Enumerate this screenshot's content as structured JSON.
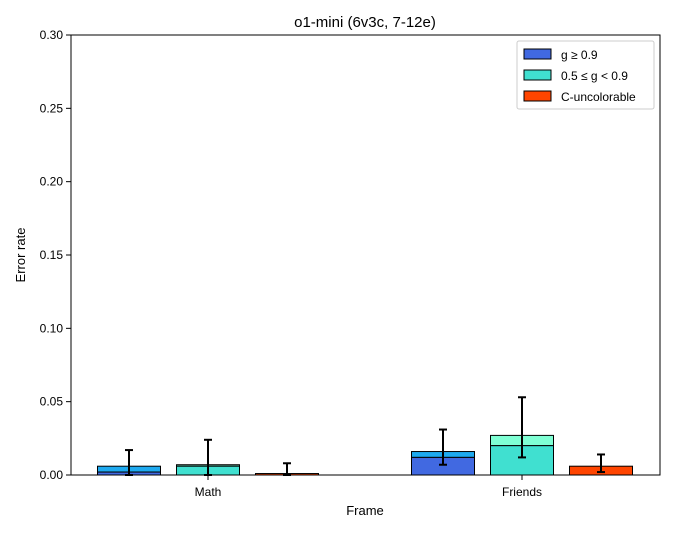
{
  "chart_data": {
    "type": "bar",
    "title": "o1-mini (6v3c, 7-12e)",
    "xlabel": "Frame",
    "ylabel": "Error rate",
    "ylim": [
      0,
      0.3
    ],
    "yticks": [
      "0.00",
      "0.05",
      "0.10",
      "0.15",
      "0.20",
      "0.25",
      "0.30"
    ],
    "categories": [
      "Math",
      "Friends"
    ],
    "legend_position": "top-right",
    "grid": false,
    "series": [
      {
        "name": "g ≥ 0.9",
        "color": "#4169e1",
        "top_color": "#1eaaf0",
        "values": [
          0.002,
          0.012
        ],
        "stacked_top": [
          0.006,
          0.016
        ],
        "error_low": [
          0.0,
          0.007
        ],
        "error_high": [
          0.017,
          0.031
        ]
      },
      {
        "name": "0.5 ≤ g < 0.9",
        "color": "#40e0d0",
        "top_color": "#7fffd4",
        "values": [
          0.006,
          0.02
        ],
        "stacked_top": [
          0.007,
          0.027
        ],
        "error_low": [
          0.0,
          0.012
        ],
        "error_high": [
          0.024,
          0.053
        ]
      },
      {
        "name": "C-uncolorable",
        "color": "#ff4500",
        "top_color": "#ff4500",
        "values": [
          0.001,
          0.006
        ],
        "stacked_top": [
          0.001,
          0.006
        ],
        "error_low": [
          0.0,
          0.002
        ],
        "error_high": [
          0.008,
          0.014
        ]
      }
    ]
  }
}
